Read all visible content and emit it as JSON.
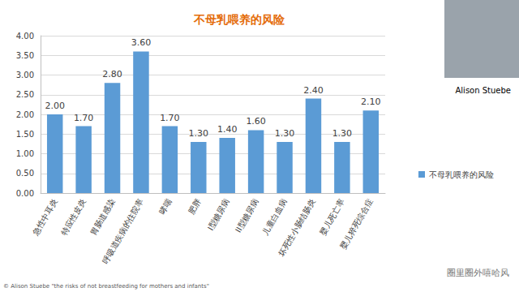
{
  "chart_data": {
    "type": "bar",
    "title": "不母乳喂养的风险",
    "categories": [
      "急性中耳炎",
      "特应性皮炎",
      "胃肠道感染",
      "呼吸道疾病的住院率",
      "哮喘",
      "肥胖",
      "I型糖尿病",
      "II型糖尿病",
      "儿童白血病",
      "坏死性小肠结肠炎",
      "婴儿死亡率",
      "婴儿猝死综合症"
    ],
    "series": [
      {
        "name": "不母乳喂养的风险",
        "color": "#5b9bd5",
        "values": [
          2.0,
          1.7,
          2.8,
          3.6,
          1.7,
          1.3,
          1.4,
          1.6,
          1.3,
          2.4,
          1.3,
          2.1
        ],
        "value_labels": [
          "2.00",
          "1.70",
          "2.80",
          "3.60",
          "1.70",
          "1.30",
          "1.40",
          "1.60",
          "1.30",
          "2.40",
          "1.30",
          "2.10"
        ]
      }
    ],
    "ylim": [
      0,
      4
    ],
    "yticks": [
      {
        "value": 0,
        "label": "0.00"
      },
      {
        "value": 0.5,
        "label": "0.50"
      },
      {
        "value": 1,
        "label": "1.00"
      },
      {
        "value": 1.5,
        "label": "1.50"
      },
      {
        "value": 2,
        "label": "2.00"
      },
      {
        "value": 2.5,
        "label": "2.50"
      },
      {
        "value": 3,
        "label": "3.00"
      },
      {
        "value": 3.5,
        "label": "3.50"
      },
      {
        "value": 4,
        "label": "4.00"
      }
    ],
    "grid": true,
    "legend": "right",
    "data_labels": true,
    "annotations": [
      "Alison Stuebe",
      "© Alison Stuebe \"the risks of not breastfeeding for mothers and infants\"",
      "圈里圈外嘻哈风"
    ]
  }
}
